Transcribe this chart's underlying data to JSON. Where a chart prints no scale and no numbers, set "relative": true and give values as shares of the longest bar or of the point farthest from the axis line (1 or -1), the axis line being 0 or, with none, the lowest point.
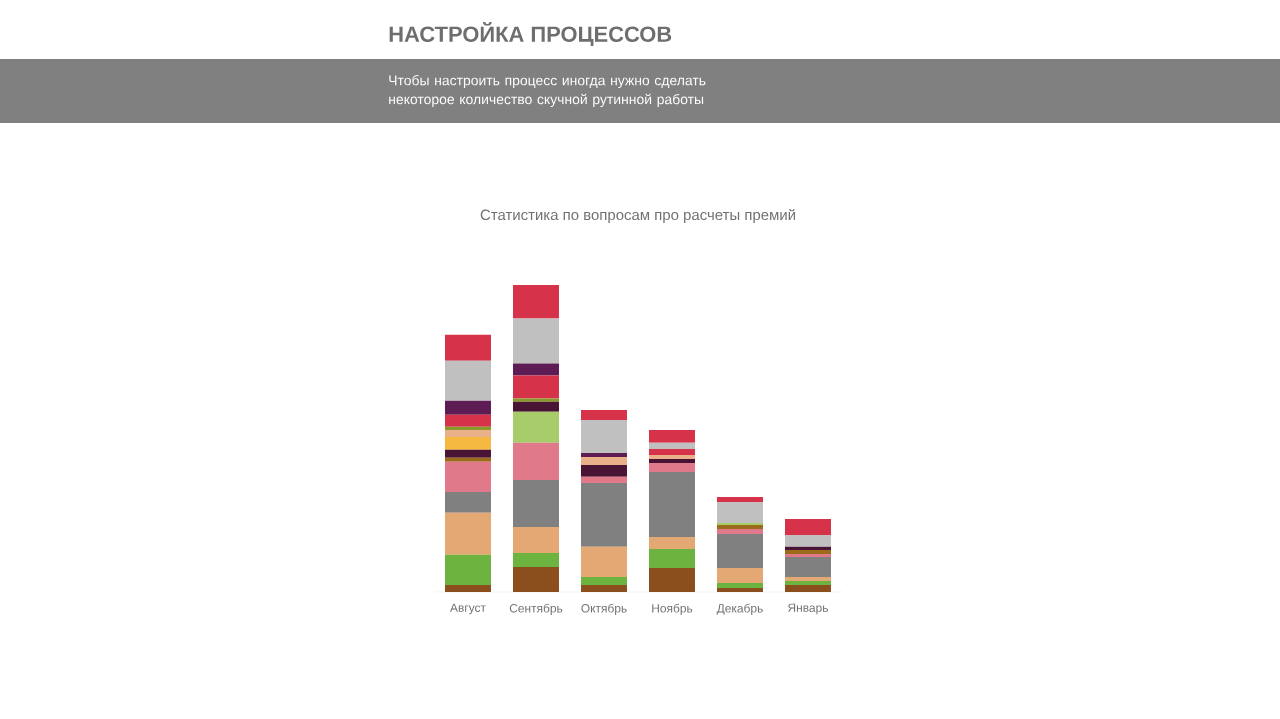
{
  "chart_data": {
    "type": "bar",
    "title": "НАСТРОЙКА ПРОЦЕССОВ",
    "subtitle": "Чтобы настроить процесс иногда нужно сделать некоторое количество скучной рутинной работы",
    "annotations": [
      "Статистика по вопросам про расчеты премий"
    ],
    "categories": [
      "Август",
      "Сентябрь",
      "Октябрь",
      "Ноябрь",
      "Декабрь",
      "Январь"
    ],
    "relative": true,
    "stacked": true,
    "series": [
      {
        "color": "#8b4f1e",
        "values": [
          0.023,
          0.081,
          0.023,
          0.078,
          0.013,
          0.023
        ]
      },
      {
        "color": "#6db33f",
        "values": [
          0.098,
          0.046,
          0.026,
          0.062,
          0.016,
          0.013
        ]
      },
      {
        "color": "#e3a873",
        "values": [
          0.137,
          0.085,
          0.098,
          0.039,
          0.049,
          0.013
        ]
      },
      {
        "color": "#808080",
        "values": [
          0.068,
          0.153,
          0.208,
          0.212,
          0.111,
          0.065
        ]
      },
      {
        "color": "#e07a8a",
        "values": [
          0.098,
          0.121,
          0.02,
          0.029,
          0.016,
          0.01
        ]
      },
      {
        "color": "#9b6a1a",
        "values": [
          0.013,
          0,
          0,
          0,
          0.013,
          0.013
        ]
      },
      {
        "color": "#a8cc6a",
        "values": [
          0,
          0.101,
          0,
          0,
          0.007,
          0
        ]
      },
      {
        "color": "#4a1535",
        "values": [
          0.026,
          0.033,
          0.039,
          0.013,
          0,
          0.01
        ]
      },
      {
        "color": "#f5b942",
        "values": [
          0.042,
          0,
          0,
          0,
          0,
          0
        ]
      },
      {
        "color": "#eab08a",
        "values": [
          0.023,
          0,
          0.026,
          0.013,
          0,
          0
        ]
      },
      {
        "color": "#8a9a2a",
        "values": [
          0.01,
          0.01,
          0,
          0,
          0,
          0
        ]
      },
      {
        "color": "#d6334a",
        "values": [
          0.039,
          0.075,
          0,
          0.02,
          0,
          0
        ]
      },
      {
        "color": "#5e1c55",
        "values": [
          0.046,
          0.039,
          0.013,
          0,
          0,
          0
        ]
      },
      {
        "color": "#c0c0c0",
        "values": [
          0.13,
          0.147,
          0.107,
          0.02,
          0.068,
          0.039
        ]
      },
      {
        "color": "#d6334a",
        "values": [
          0.085,
          0.109,
          0.033,
          0.042,
          0.016,
          0.052
        ]
      }
    ]
  }
}
